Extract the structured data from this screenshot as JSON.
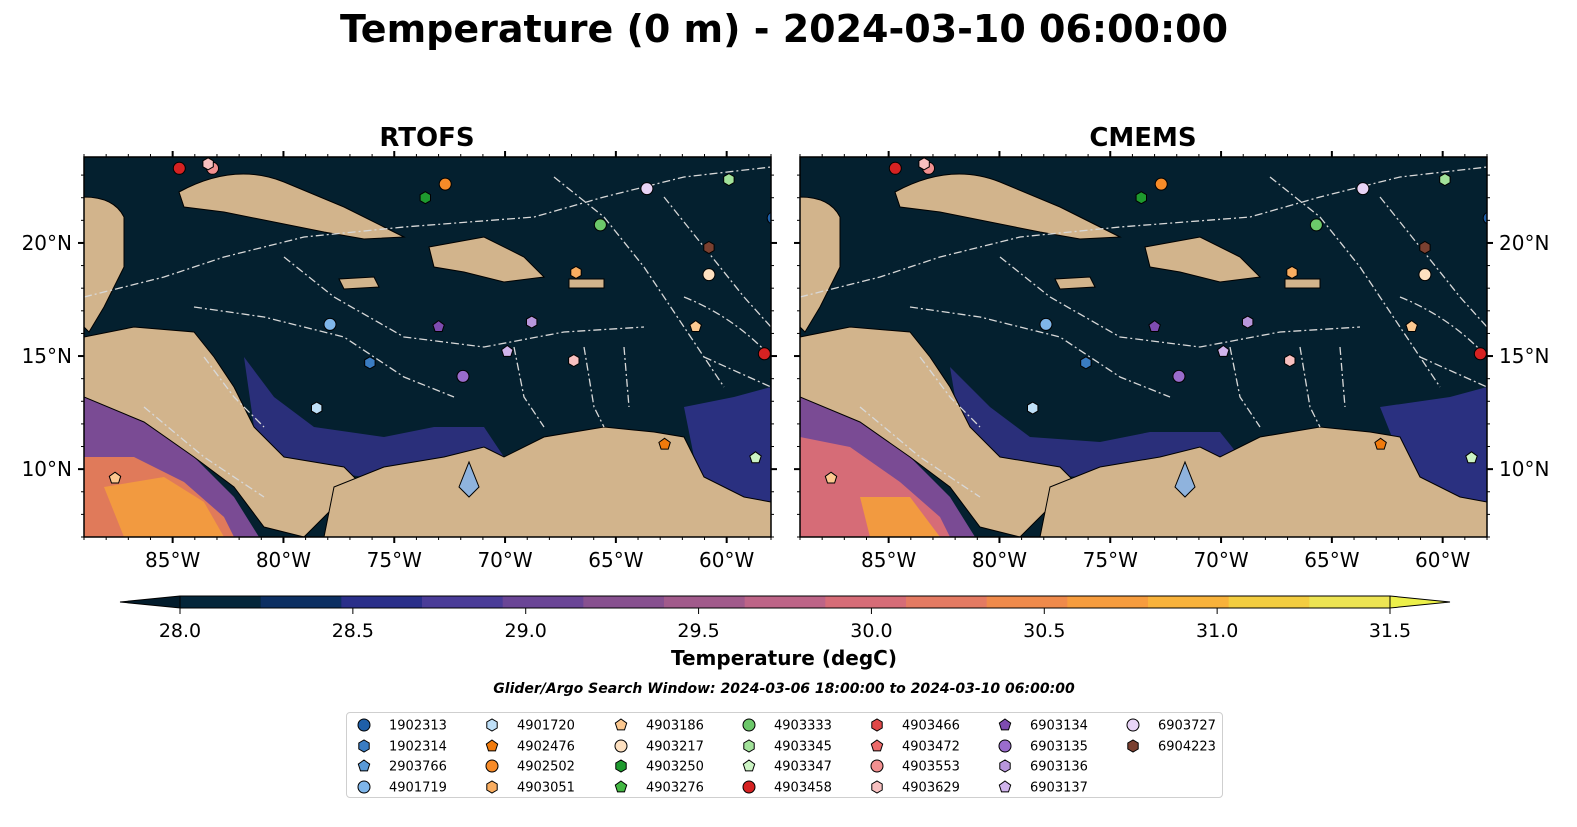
{
  "title": "Temperature (0 m) - 2024-03-10 06:00:00",
  "panels": [
    {
      "title": "RTOFS"
    },
    {
      "title": "CMEMS"
    }
  ],
  "axes": {
    "lon_labels": [
      "85°W",
      "80°W",
      "75°W",
      "70°W",
      "65°W",
      "60°W"
    ],
    "lat_labels": [
      "20°N",
      "15°N",
      "10°N"
    ]
  },
  "colorbar": {
    "label": "Temperature (degC)",
    "ticks": [
      "28.0",
      "28.5",
      "29.0",
      "29.5",
      "30.0",
      "30.5",
      "31.0",
      "31.5"
    ],
    "colors": [
      "#04263a",
      "#0c2f62",
      "#2a2f8a",
      "#4a3c98",
      "#6a4596",
      "#87508f",
      "#a15a8b",
      "#bd6487",
      "#d66c77",
      "#e47a62",
      "#ef8a4b",
      "#f69c3e",
      "#f8b23b",
      "#f3cd40",
      "#ede453"
    ]
  },
  "search_window": "Glider/Argo Search Window: 2024-03-06 18:00:00 to 2024-03-10 06:00:00",
  "legend": [
    {
      "id": "1902313",
      "shape": "circle",
      "color": "#1f5fa8"
    },
    {
      "id": "1902314",
      "shape": "hexagon",
      "color": "#3a7cc2"
    },
    {
      "id": "2903766",
      "shape": "pentagon",
      "color": "#5a9ad8"
    },
    {
      "id": "4901719",
      "shape": "circle",
      "color": "#7fb6ea"
    },
    {
      "id": "4901720",
      "shape": "hexagon",
      "color": "#bfe0f8"
    },
    {
      "id": "4902476",
      "shape": "pentagon",
      "color": "#f07a0c"
    },
    {
      "id": "4902502",
      "shape": "circle",
      "color": "#f78b28"
    },
    {
      "id": "4903051",
      "shape": "hexagon",
      "color": "#f9ad60"
    },
    {
      "id": "4903186",
      "shape": "pentagon",
      "color": "#fcc890"
    },
    {
      "id": "4903217",
      "shape": "circle",
      "color": "#fde0c0"
    },
    {
      "id": "4903250",
      "shape": "hexagon",
      "color": "#1e9a2e"
    },
    {
      "id": "4903276",
      "shape": "pentagon",
      "color": "#43b843"
    },
    {
      "id": "4903333",
      "shape": "circle",
      "color": "#6cc86a"
    },
    {
      "id": "4903345",
      "shape": "hexagon",
      "color": "#a2e29a"
    },
    {
      "id": "4903347",
      "shape": "pentagon",
      "color": "#ccf4c4"
    },
    {
      "id": "4903458",
      "shape": "circle",
      "color": "#d62222"
    },
    {
      "id": "4903466",
      "shape": "hexagon",
      "color": "#e04848"
    },
    {
      "id": "4903472",
      "shape": "pentagon",
      "color": "#eb6a6a"
    },
    {
      "id": "4903553",
      "shape": "circle",
      "color": "#f29090"
    },
    {
      "id": "4903629",
      "shape": "hexagon",
      "color": "#f8c0c0"
    },
    {
      "id": "6903134",
      "shape": "pentagon",
      "color": "#7e4cb0"
    },
    {
      "id": "6903135",
      "shape": "circle",
      "color": "#9a6ccc"
    },
    {
      "id": "6903136",
      "shape": "hexagon",
      "color": "#b896dc"
    },
    {
      "id": "6903137",
      "shape": "pentagon",
      "color": "#d0b4ec"
    },
    {
      "id": "6903727",
      "shape": "circle",
      "color": "#e8d4f6"
    },
    {
      "id": "6904223",
      "shape": "hexagon",
      "color": "#7a4030"
    }
  ],
  "markers": [
    {
      "id": "4903458",
      "lon": -84.7,
      "lat": 23.3
    },
    {
      "id": "4903553",
      "lon": -83.2,
      "lat": 23.3
    },
    {
      "id": "4903629",
      "lon": -83.4,
      "lat": 23.5
    },
    {
      "id": "4903250",
      "lon": -73.6,
      "lat": 22.0
    },
    {
      "id": "4902502",
      "lon": -72.7,
      "lat": 22.6
    },
    {
      "id": "6903727",
      "lon": -63.6,
      "lat": 22.4
    },
    {
      "id": "4903345",
      "lon": -59.9,
      "lat": 22.8
    },
    {
      "id": "1902313",
      "lon": -57.9,
      "lat": 21.1
    },
    {
      "id": "4903333",
      "lon": -65.7,
      "lat": 20.8
    },
    {
      "id": "6904223",
      "lon": -60.8,
      "lat": 19.8
    },
    {
      "id": "4903217",
      "lon": -60.8,
      "lat": 18.6
    },
    {
      "id": "4903051",
      "lon": -66.8,
      "lat": 18.7
    },
    {
      "id": "4901719",
      "lon": -77.9,
      "lat": 16.4
    },
    {
      "id": "6903134",
      "lon": -73.0,
      "lat": 16.3
    },
    {
      "id": "6903136",
      "lon": -68.8,
      "lat": 16.5
    },
    {
      "id": "6903137",
      "lon": -69.9,
      "lat": 15.2
    },
    {
      "id": "1902314",
      "lon": -76.1,
      "lat": 14.7
    },
    {
      "id": "4903629",
      "lon": -66.9,
      "lat": 14.8
    },
    {
      "id": "6903135",
      "lon": -71.9,
      "lat": 14.1
    },
    {
      "id": "4903458",
      "lon": -58.3,
      "lat": 15.1
    },
    {
      "id": "4903186",
      "lon": -61.4,
      "lat": 16.3
    },
    {
      "id": "4901720",
      "lon": -78.5,
      "lat": 12.7
    },
    {
      "id": "4903186",
      "lon": -87.6,
      "lat": 9.6
    },
    {
      "id": "4903347",
      "lon": -58.7,
      "lat": 10.5
    },
    {
      "id": "4902476",
      "lon": -62.8,
      "lat": 11.1
    }
  ]
}
